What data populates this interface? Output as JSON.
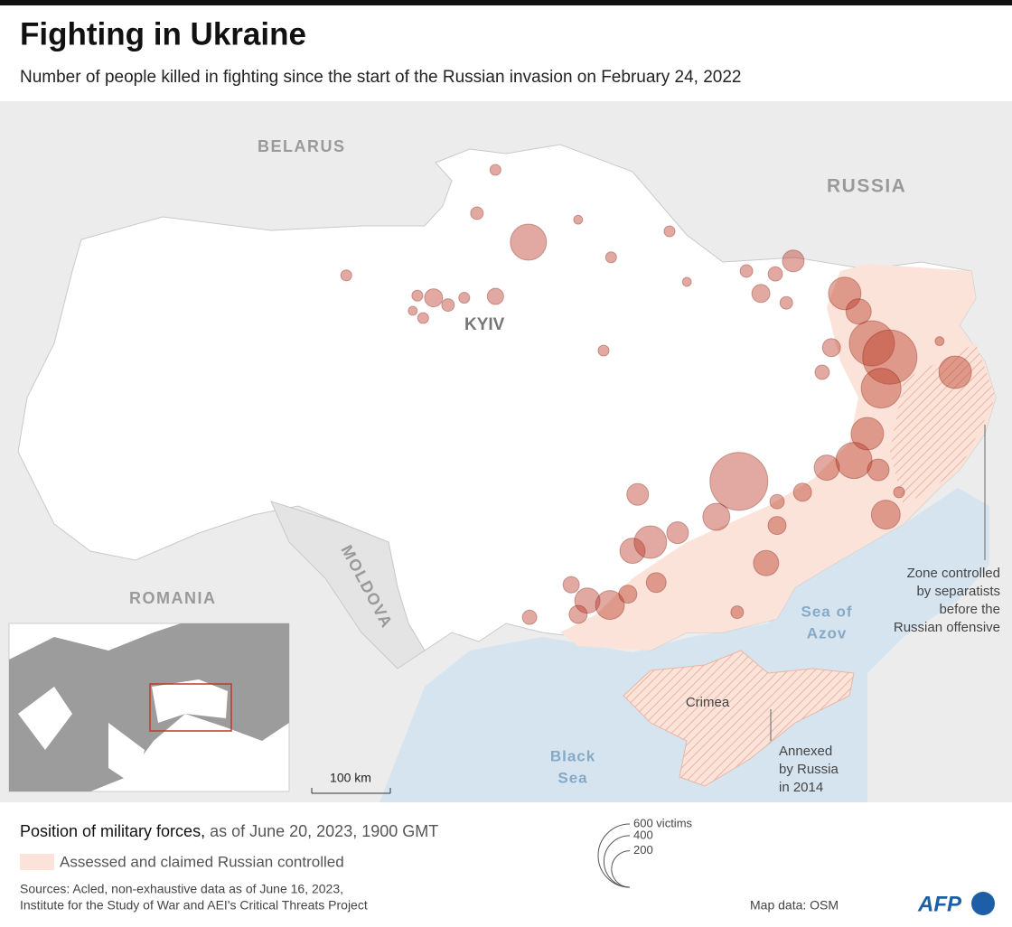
{
  "header": {
    "title": "Fighting in Ukraine",
    "subtitle": "Number of people killed in fighting since the start of the Russian invasion on February 24, 2022"
  },
  "map": {
    "labels": {
      "belarus": "BELARUS",
      "russia": "RUSSIA",
      "romania": "ROMANIA",
      "moldova": "MOLDOVA",
      "kyiv": "KYIV",
      "sea_of_azov": [
        "Sea of",
        "Azov"
      ],
      "black_sea": [
        "Black",
        "Sea"
      ],
      "crimea": "Crimea"
    },
    "annotations": {
      "separatists": [
        "Zone controlled",
        "by separatists",
        "before the",
        "Russian offensive"
      ],
      "annexed": [
        "Annexed",
        "by Russia",
        "in 2014"
      ]
    },
    "scale_bar": "100 km",
    "color": "#b8321f",
    "size_legend": [
      {
        "value": 600,
        "label": "600 victims"
      },
      400,
      200
    ],
    "events": [
      {
        "lon": 31.22,
        "lat": 51.6,
        "victims": 196
      },
      {
        "lon": 30.65,
        "lat": 52.6,
        "victims": 18
      },
      {
        "lon": 30.33,
        "lat": 52.0,
        "victims": 24
      },
      {
        "lon": 32.08,
        "lat": 51.91,
        "victims": 12
      },
      {
        "lon": 32.65,
        "lat": 51.39,
        "victims": 18
      },
      {
        "lon": 33.66,
        "lat": 51.75,
        "victims": 18
      },
      {
        "lon": 28.07,
        "lat": 51.14,
        "victims": 18
      },
      {
        "lon": 29.3,
        "lat": 50.86,
        "victims": 18
      },
      {
        "lon": 29.58,
        "lat": 50.83,
        "victims": 49
      },
      {
        "lon": 29.83,
        "lat": 50.73,
        "victims": 24
      },
      {
        "lon": 30.11,
        "lat": 50.83,
        "victims": 18
      },
      {
        "lon": 30.65,
        "lat": 50.85,
        "victims": 40
      },
      {
        "lon": 29.4,
        "lat": 50.55,
        "victims": 18
      },
      {
        "lon": 29.22,
        "lat": 50.65,
        "victims": 12
      },
      {
        "lon": 32.52,
        "lat": 50.1,
        "victims": 18
      },
      {
        "lon": 33.96,
        "lat": 51.05,
        "victims": 12
      },
      {
        "lon": 34.99,
        "lat": 51.2,
        "victims": 24
      },
      {
        "lon": 35.8,
        "lat": 51.34,
        "victims": 71
      },
      {
        "lon": 35.24,
        "lat": 50.89,
        "victims": 49
      },
      {
        "lon": 35.49,
        "lat": 51.16,
        "victims": 31
      },
      {
        "lon": 35.68,
        "lat": 50.76,
        "victims": 24
      },
      {
        "lon": 36.69,
        "lat": 50.89,
        "victims": 159
      },
      {
        "lon": 36.93,
        "lat": 50.64,
        "victims": 96
      },
      {
        "lon": 37.16,
        "lat": 50.2,
        "victims": 306
      },
      {
        "lon": 37.47,
        "lat": 50.01,
        "victims": 441
      },
      {
        "lon": 37.32,
        "lat": 49.58,
        "victims": 237
      },
      {
        "lon": 36.46,
        "lat": 50.14,
        "victims": 49
      },
      {
        "lon": 36.3,
        "lat": 49.8,
        "victims": 31
      },
      {
        "lon": 38.6,
        "lat": 49.8,
        "victims": 159
      },
      {
        "lon": 37.08,
        "lat": 48.95,
        "victims": 159
      },
      {
        "lon": 36.85,
        "lat": 48.58,
        "victims": 196
      },
      {
        "lon": 36.38,
        "lat": 48.48,
        "victims": 96
      },
      {
        "lon": 37.27,
        "lat": 48.45,
        "victims": 71
      },
      {
        "lon": 34.86,
        "lat": 48.29,
        "victims": 502
      },
      {
        "lon": 35.96,
        "lat": 48.14,
        "victims": 49
      },
      {
        "lon": 35.52,
        "lat": 48.01,
        "victims": 31
      },
      {
        "lon": 33.11,
        "lat": 48.11,
        "victims": 71
      },
      {
        "lon": 34.47,
        "lat": 47.8,
        "victims": 110
      },
      {
        "lon": 35.52,
        "lat": 47.68,
        "victims": 49
      },
      {
        "lon": 37.4,
        "lat": 47.83,
        "victims": 125
      },
      {
        "lon": 33.8,
        "lat": 47.58,
        "victims": 71
      },
      {
        "lon": 33.02,
        "lat": 47.33,
        "victims": 96
      },
      {
        "lon": 33.33,
        "lat": 47.45,
        "victims": 159
      },
      {
        "lon": 35.33,
        "lat": 47.16,
        "victims": 96
      },
      {
        "lon": 31.96,
        "lat": 46.86,
        "victims": 40
      },
      {
        "lon": 32.24,
        "lat": 46.64,
        "victims": 96
      },
      {
        "lon": 32.63,
        "lat": 46.58,
        "victims": 125
      },
      {
        "lon": 32.08,
        "lat": 46.45,
        "victims": 49
      },
      {
        "lon": 31.24,
        "lat": 46.41,
        "victims": 31
      },
      {
        "lon": 32.94,
        "lat": 46.73,
        "victims": 49
      },
      {
        "lon": 33.43,
        "lat": 46.89,
        "victims": 59
      },
      {
        "lon": 34.83,
        "lat": 46.48,
        "victims": 24
      },
      {
        "lon": 38.33,
        "lat": 50.23,
        "victims": 12
      },
      {
        "lon": 37.63,
        "lat": 48.14,
        "victims": 18
      }
    ]
  },
  "footer": {
    "position_title": "Position of military forces,",
    "position_date": " as of June 20, 2023, 1900 GMT",
    "controlled_legend": "Assessed and claimed Russian controlled",
    "sources": [
      "Sources: Acled, non-exhaustive data as of June 16, 2023,",
      "Institute for the Study of War and AEI's Critical Threats Project"
    ],
    "map_data": "Map data: OSM",
    "logo": "AFP"
  }
}
